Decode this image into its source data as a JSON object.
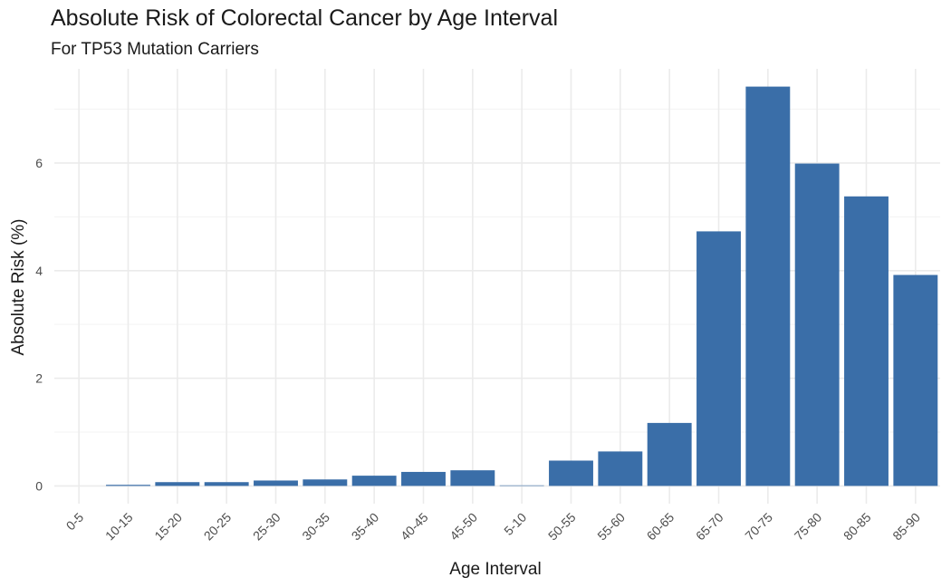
{
  "chart_data": {
    "type": "bar",
    "title": "Absolute Risk of Colorectal Cancer by Age Interval",
    "subtitle": "For TP53 Mutation Carriers",
    "xlabel": "Age Interval",
    "ylabel": "Absolute Risk (%)",
    "categories": [
      "0-5",
      "10-15",
      "15-20",
      "20-25",
      "25-30",
      "30-35",
      "35-40",
      "40-45",
      "45-50",
      "5-10",
      "50-55",
      "55-60",
      "60-65",
      "65-70",
      "70-75",
      "75-80",
      "80-85",
      "85-90"
    ],
    "values": [
      0.0,
      0.02,
      0.07,
      0.07,
      0.1,
      0.12,
      0.19,
      0.26,
      0.29,
      0.01,
      0.47,
      0.64,
      1.17,
      4.73,
      7.42,
      5.99,
      5.38,
      3.92
    ],
    "yticks": [
      0,
      2,
      4,
      6
    ],
    "ylim": [
      -0.33,
      7.75
    ],
    "grid": true,
    "bar_color": "#3a6ea8",
    "grid_color": "#ebebeb"
  }
}
